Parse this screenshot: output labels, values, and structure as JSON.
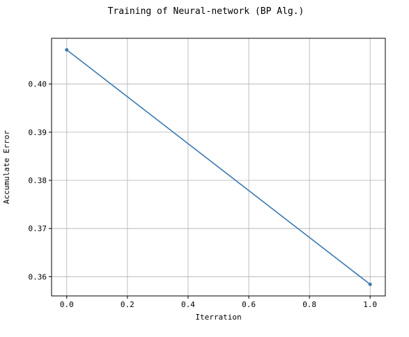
{
  "chart_data": {
    "type": "line",
    "title": "Training of Neural-network (BP Alg.)",
    "xlabel": "Iterration",
    "ylabel": "Accumulate Error",
    "x": [
      0.0,
      1.0
    ],
    "series": [
      {
        "values": [
          0.4071,
          0.3584
        ],
        "color": "#3a78b0"
      }
    ],
    "xlim": [
      -0.05,
      1.05
    ],
    "ylim": [
      0.356,
      0.4095
    ],
    "xticks": [
      0.0,
      0.2,
      0.4,
      0.6,
      0.8,
      1.0
    ],
    "xtick_labels": [
      "0.0",
      "0.2",
      "0.4",
      "0.6",
      "0.8",
      "1.0"
    ],
    "yticks": [
      0.36,
      0.37,
      0.38,
      0.39,
      0.4
    ],
    "ytick_labels": [
      "0.36",
      "0.37",
      "0.38",
      "0.39",
      "0.40"
    ],
    "grid": true,
    "legend": "none"
  }
}
